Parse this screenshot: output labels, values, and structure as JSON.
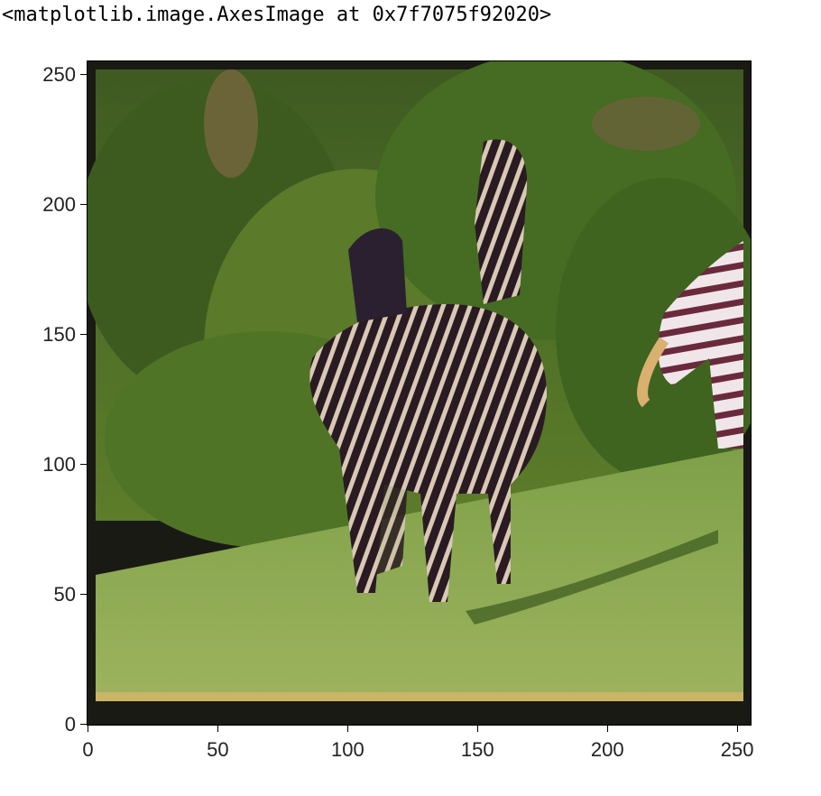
{
  "output": {
    "repr_text": "<matplotlib.image.AxesImage at 0x7f7075f92020>"
  },
  "figure": {
    "image_description_icon": "image-icon",
    "x_ticks": [
      "0",
      "50",
      "100",
      "150",
      "200",
      "250"
    ],
    "y_ticks": [
      "0",
      "50",
      "100",
      "150",
      "200",
      "250"
    ],
    "x_tick_values": [
      0,
      50,
      100,
      150,
      200,
      250
    ],
    "y_tick_values": [
      0,
      50,
      100,
      150,
      200,
      250
    ],
    "x_range": [
      -0.5,
      255.5
    ],
    "y_range": [
      255.5,
      -0.5
    ]
  }
}
